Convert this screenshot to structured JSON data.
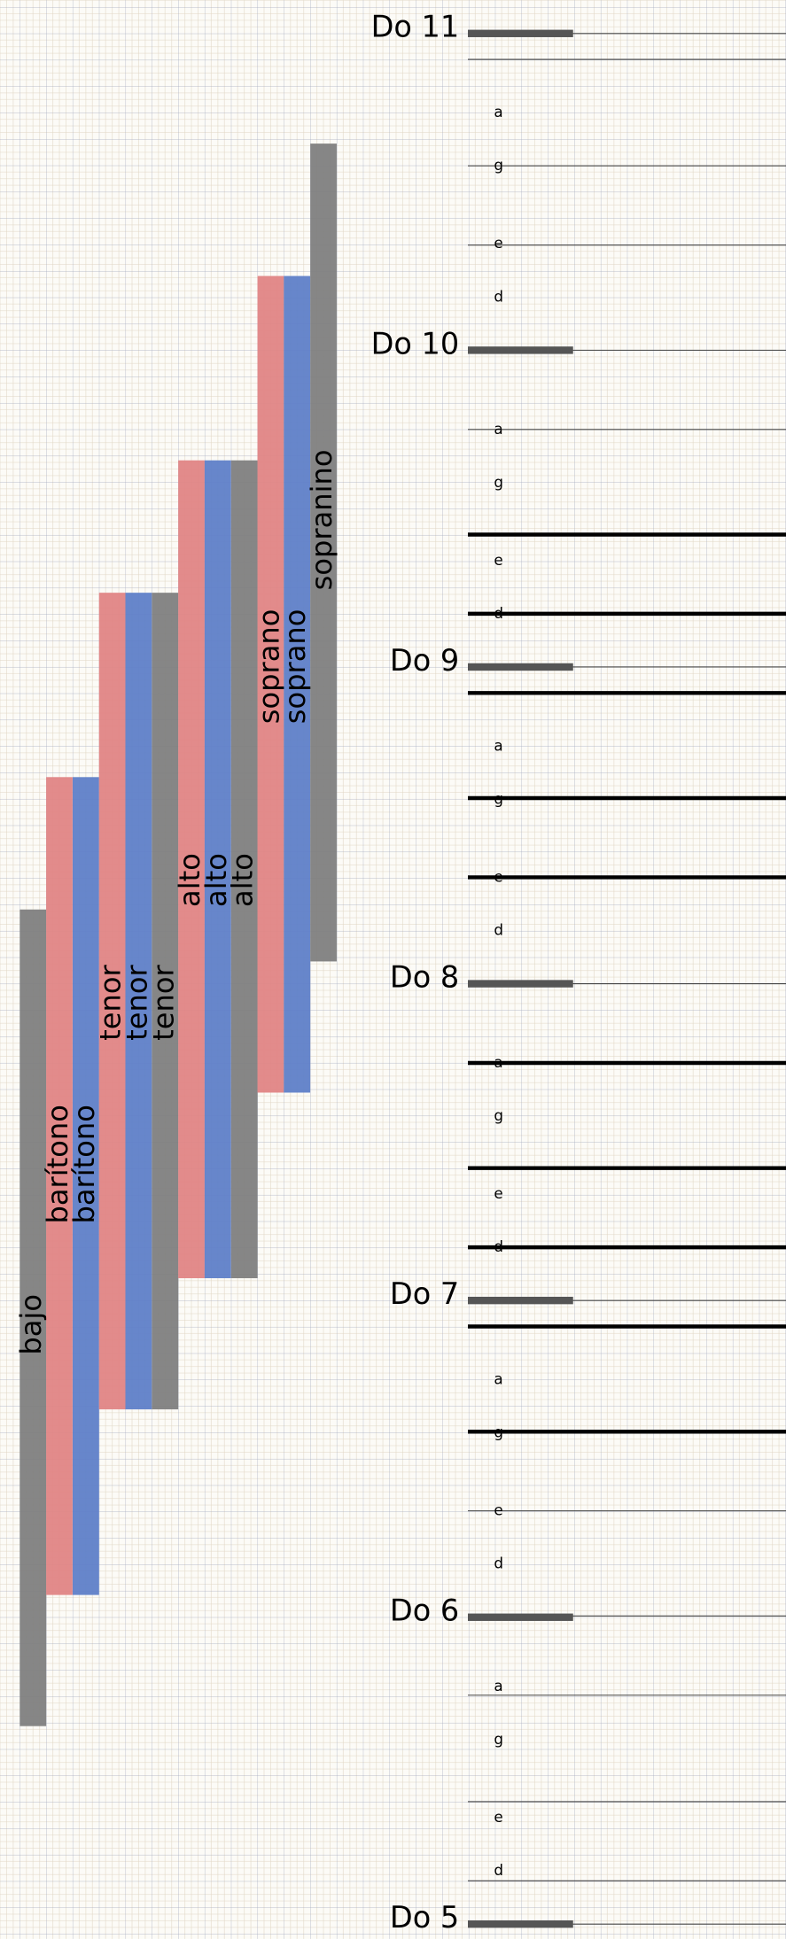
{
  "octaves": [
    {
      "label": "Do 11"
    },
    {
      "label": "Do 10",
      "notes": [
        "a",
        "g",
        "e",
        "d"
      ]
    },
    {
      "label": "Do 9",
      "notes": [
        "a",
        "g",
        "e",
        "d"
      ]
    },
    {
      "label": "Do 8",
      "notes": [
        "a",
        "g",
        "e",
        "d"
      ]
    },
    {
      "label": "Do 7",
      "notes": [
        "a",
        "g",
        "e",
        "d"
      ]
    },
    {
      "label": "Do 6",
      "notes": [
        "a",
        "g",
        "e",
        "d"
      ]
    },
    {
      "label": "Do 5",
      "notes": [
        "a",
        "g",
        "e",
        "d"
      ]
    }
  ],
  "columns": [
    "bajo",
    "barítono",
    "barítono",
    "tenor",
    "tenor",
    "tenor",
    "alto",
    "alto",
    "alto",
    "soprano",
    "soprano",
    "sopranino"
  ]
}
